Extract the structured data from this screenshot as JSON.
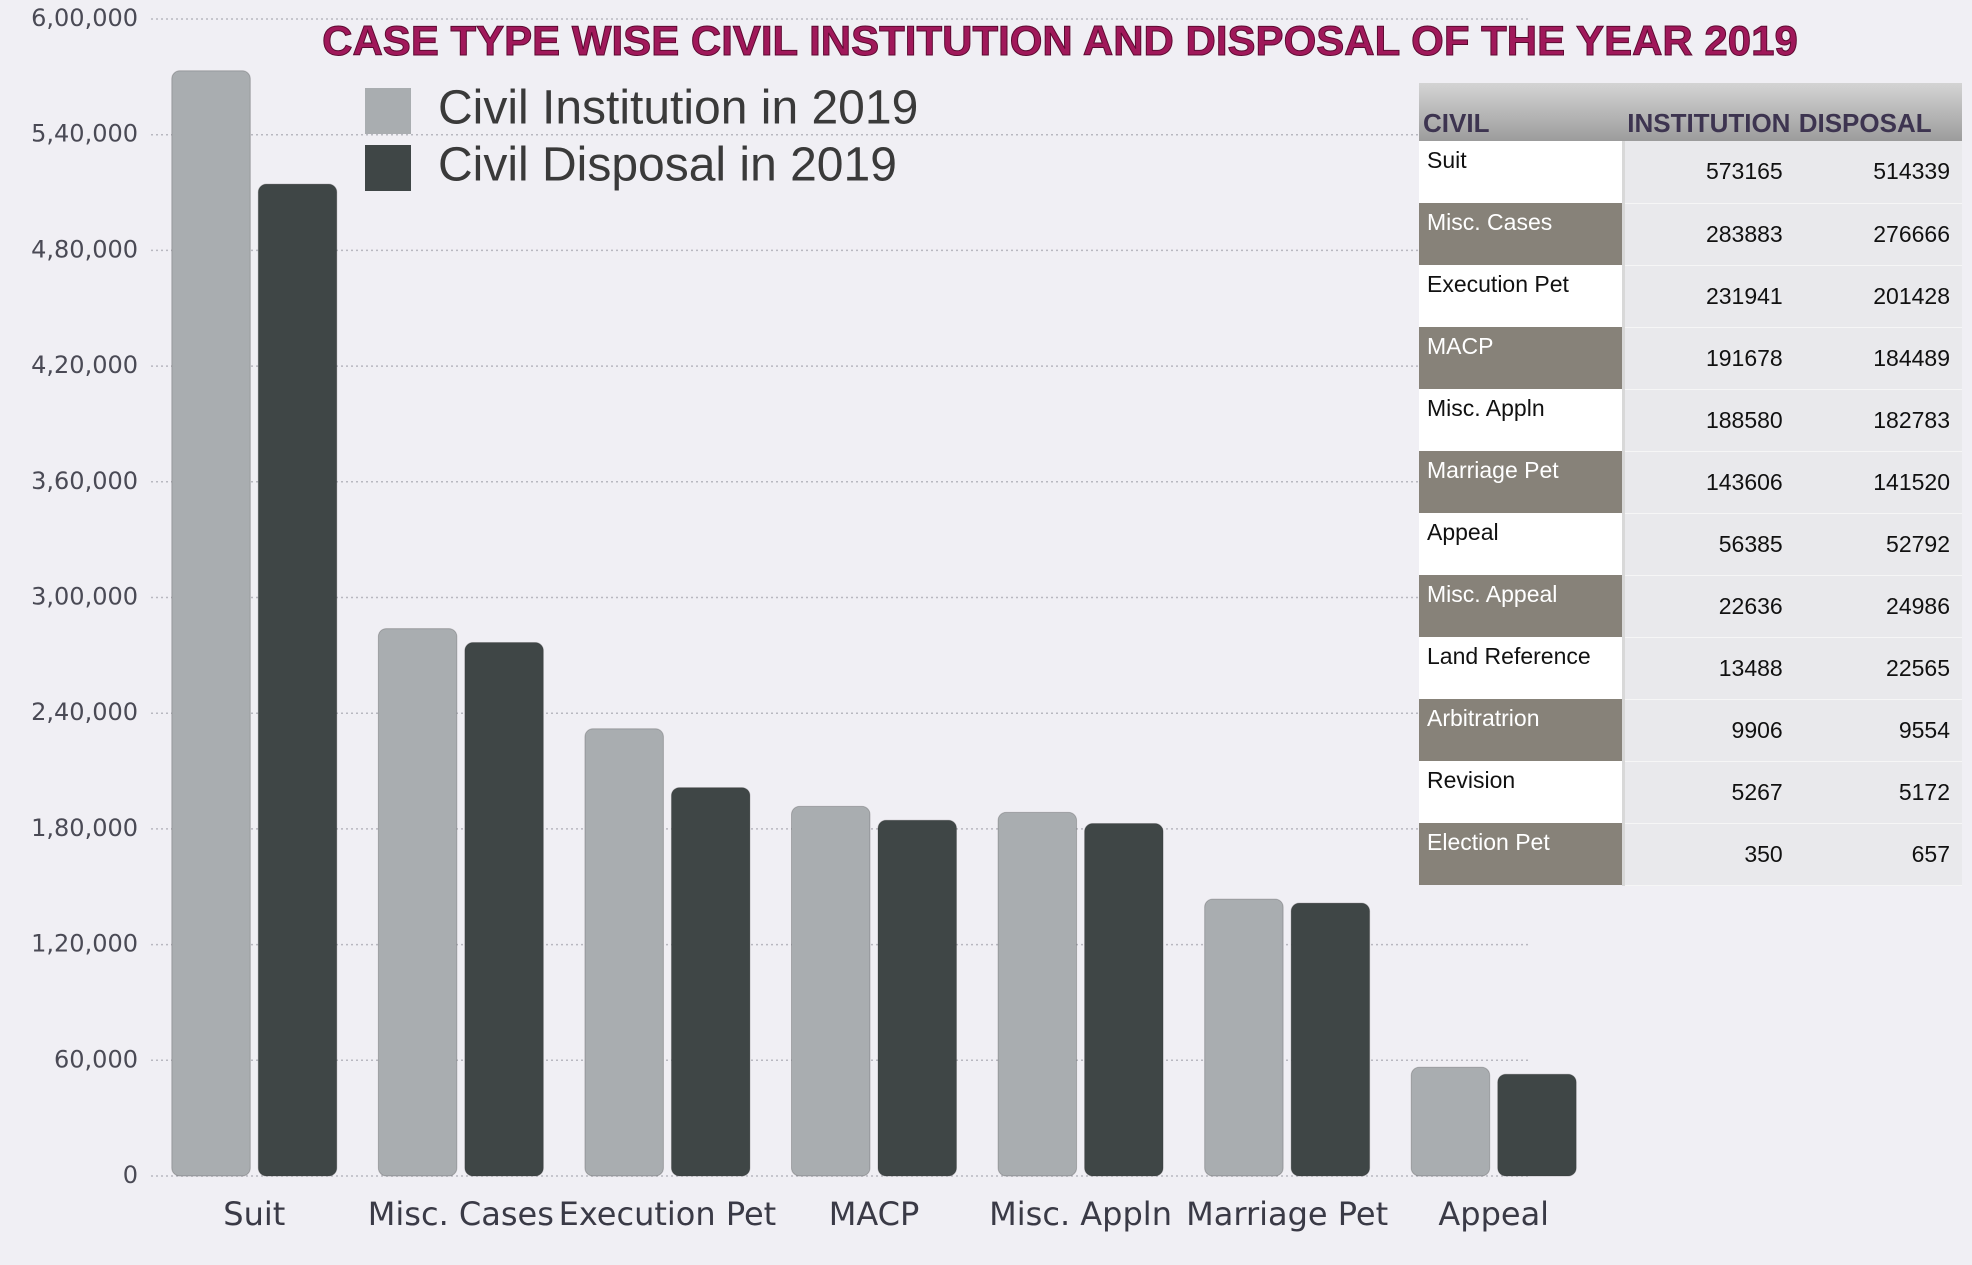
{
  "chart_data": {
    "type": "bar",
    "title": "CASE TYPE WISE CIVIL INSTITUTION AND DISPOSAL OF THE YEAR 2019",
    "categories": [
      "Suit",
      "Misc. Cases",
      "Execution Pet",
      "MACP",
      "Misc. Appln",
      "Marriage Pet",
      "Appeal"
    ],
    "series": [
      {
        "name": "Civil Institution in 2019",
        "color": "#a9adb0",
        "values": [
          573165,
          283883,
          231941,
          191678,
          188580,
          143606,
          56385
        ]
      },
      {
        "name": "Civil Disposal in 2019",
        "color": "#3f4646",
        "values": [
          514339,
          276666,
          201428,
          184489,
          182783,
          141520,
          52792
        ]
      }
    ],
    "ylim": [
      0,
      600000
    ],
    "yticks": [
      0,
      {
        "value": 60000,
        "label": "60,000"
      },
      {
        "value": 120000,
        "label": "1,20,000"
      },
      {
        "value": 180000,
        "label": "1,80,000"
      },
      {
        "value": 240000,
        "label": "2,40,000"
      },
      {
        "value": 300000,
        "label": "3,00,000"
      },
      {
        "value": 360000,
        "label": "3,60,000"
      },
      {
        "value": 420000,
        "label": "4,20,000"
      },
      {
        "value": 480000,
        "label": "4,80,000"
      },
      {
        "value": 540000,
        "label": "5,40,000"
      },
      {
        "value": 600000,
        "label": "6,00,000"
      }
    ],
    "grid": true
  },
  "table": {
    "header": [
      "CIVIL",
      "INSTITUTION",
      "DISPOSAL"
    ],
    "rows": [
      [
        "Suit",
        573165,
        514339
      ],
      [
        "Misc. Cases",
        283883,
        276666
      ],
      [
        "Execution Pet",
        231941,
        201428
      ],
      [
        "MACP",
        191678,
        184489
      ],
      [
        "Misc. Appln",
        188580,
        182783
      ],
      [
        "Marriage Pet",
        143606,
        141520
      ],
      [
        "Appeal",
        56385,
        52792
      ],
      [
        "Misc. Appeal",
        22636,
        24986
      ],
      [
        "Land Reference",
        13488,
        22565
      ],
      [
        "Arbitratrion",
        9906,
        9554
      ],
      [
        "Revision",
        5267,
        5172
      ],
      [
        "Election Pet",
        350,
        657
      ]
    ]
  }
}
